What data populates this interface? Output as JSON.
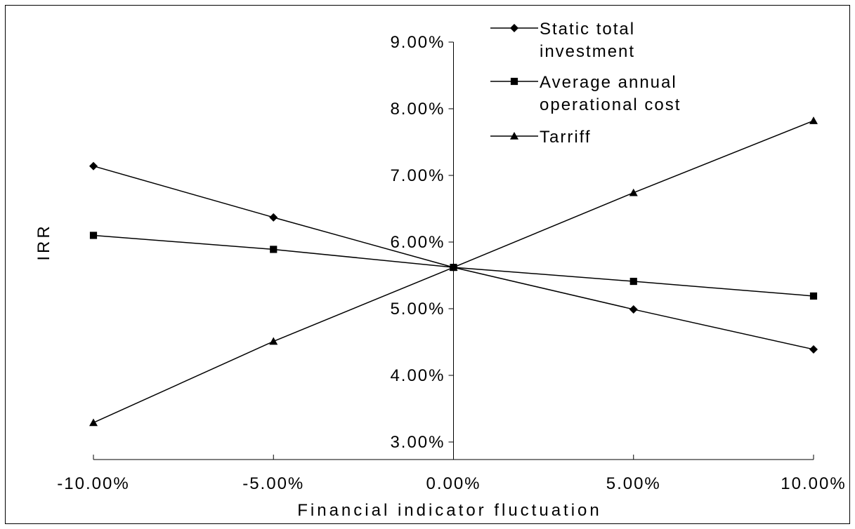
{
  "chart_data": {
    "type": "line",
    "title": "",
    "xlabel": "Financial indicator fluctuation",
    "ylabel": "IRR",
    "x": [
      -10,
      -5,
      0,
      5,
      10
    ],
    "x_tick_labels": [
      "-10.00%",
      "-5.00%",
      "0.00%",
      "5.00%",
      "10.00%"
    ],
    "ylim": [
      3,
      9
    ],
    "y_ticks": [
      3,
      4,
      5,
      6,
      7,
      8,
      9
    ],
    "y_tick_labels": [
      "3.00%",
      "4.00%",
      "5.00%",
      "6.00%",
      "7.00%",
      "8.00%",
      "9.00%"
    ],
    "y_units": "%",
    "grid": false,
    "legend_position": "top-right",
    "series": [
      {
        "name": "Static total investment",
        "marker": "diamond",
        "values": [
          7.14,
          6.37,
          5.62,
          4.99,
          4.39
        ]
      },
      {
        "name": "Average annual operational cost",
        "marker": "square",
        "values": [
          6.1,
          5.89,
          5.62,
          5.41,
          5.19
        ]
      },
      {
        "name": "Tarriff",
        "marker": "triangle",
        "values": [
          3.29,
          4.51,
          5.62,
          6.74,
          7.82
        ]
      }
    ],
    "legend_lines": [
      [
        "Static total",
        "investment"
      ],
      [
        "Average annual",
        "operational cost"
      ],
      [
        "Tarriff"
      ]
    ],
    "line_color": "#000000"
  }
}
